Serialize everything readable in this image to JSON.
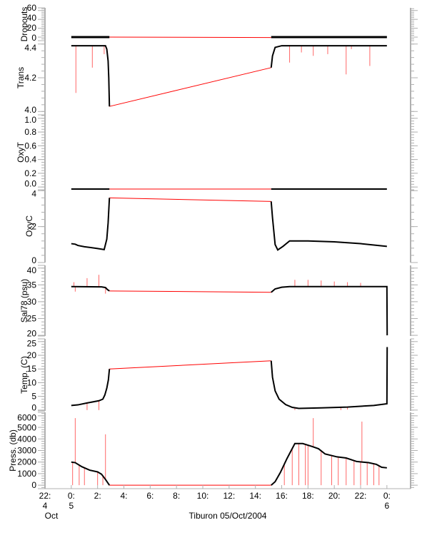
{
  "chart_data": {
    "type": "line",
    "xlabel": "Tiburon 05/Oct/2004",
    "xlim": [
      -2,
      25.8
    ],
    "x_units": "hours since 00:00 05/Oct/2004",
    "xticks": [
      {
        "v": -2,
        "label": "22:",
        "sub": "4",
        "sub2": "Oct"
      },
      {
        "v": 0,
        "label": "0:",
        "sub": "5"
      },
      {
        "v": 2,
        "label": "2:"
      },
      {
        "v": 4,
        "label": "4:"
      },
      {
        "v": 6,
        "label": "6:"
      },
      {
        "v": 8,
        "label": "8:"
      },
      {
        "v": 10,
        "label": "10:"
      },
      {
        "v": 12,
        "label": "12:"
      },
      {
        "v": 14,
        "label": "14:"
      },
      {
        "v": 16,
        "label": "16:"
      },
      {
        "v": 18,
        "label": "18:"
      },
      {
        "v": 20,
        "label": "20:"
      },
      {
        "v": 22,
        "label": "22:"
      },
      {
        "v": 24,
        "label": "0:",
        "sub": "6"
      }
    ],
    "colors": {
      "data": "#000000",
      "flagged": "#ff0000",
      "axis": "#b0b0b0"
    },
    "panels": [
      {
        "name": "dropouts",
        "ylabel": "Dropouts",
        "ylim": [
          -8,
          66
        ],
        "yticks": [
          {
            "v": 0,
            "label": "0"
          },
          {
            "v": 20,
            "label": "20"
          },
          {
            "v": 40,
            "label": "40"
          },
          {
            "v": 60,
            "label": "60"
          }
        ],
        "series": [
          [
            [
              0,
              0
            ],
            [
              2.9,
              0
            ]
          ],
          [
            [
              15.2,
              0
            ],
            [
              24,
              0
            ]
          ]
        ],
        "gap": [
          [
            2.9,
            0
          ],
          [
            15.2,
            -1
          ]
        ],
        "spikes": []
      },
      {
        "name": "trans",
        "ylabel": "Trans",
        "ylim": [
          3.98,
          4.42
        ],
        "yticks": [
          {
            "v": 4.0,
            "label": "4.0"
          },
          {
            "v": 4.2,
            "label": "4.2"
          },
          {
            "v": 4.4,
            "label": "4.4"
          }
        ],
        "series": [
          [
            [
              0,
              4.39
            ],
            [
              2.6,
              4.39
            ],
            [
              2.7,
              4.37
            ],
            [
              2.8,
              4.3
            ],
            [
              2.85,
              4.2
            ],
            [
              2.9,
              4.03
            ]
          ],
          [
            [
              15.2,
              4.26
            ],
            [
              15.3,
              4.33
            ],
            [
              15.5,
              4.38
            ],
            [
              16,
              4.39
            ],
            [
              24,
              4.39
            ]
          ]
        ],
        "gap": [
          [
            2.9,
            4.03
          ],
          [
            15.2,
            4.26
          ]
        ],
        "spikes": [
          [
            0.35,
            4.11
          ],
          [
            1.6,
            4.26
          ],
          [
            2.5,
            4.34
          ],
          [
            16.6,
            4.29
          ],
          [
            18.4,
            4.33
          ],
          [
            19.5,
            4.34
          ],
          [
            20.9,
            4.22
          ],
          [
            22.7,
            4.27
          ],
          [
            17.5,
            4.35
          ],
          [
            21.3,
            4.37
          ]
        ]
      },
      {
        "name": "oxyt",
        "ylabel": "OxyT",
        "ylim": [
          -0.04,
          1.05
        ],
        "yticks": [
          {
            "v": 0,
            "label": "0.0"
          },
          {
            "v": 0.2,
            "label": "0.2"
          },
          {
            "v": 0.4,
            "label": "0.4"
          },
          {
            "v": 0.6,
            "label": "0.6"
          },
          {
            "v": 0.8,
            "label": "0.8"
          },
          {
            "v": 1.0,
            "label": "1.0"
          }
        ],
        "series": [
          [
            [
              0,
              -0.03
            ],
            [
              2.9,
              -0.03
            ]
          ],
          [
            [
              15.2,
              -0.03
            ],
            [
              24,
              -0.03
            ]
          ]
        ],
        "gap": [
          [
            2.9,
            -0.03
          ],
          [
            15.2,
            -0.03
          ]
        ],
        "spikes": []
      },
      {
        "name": "oxyc",
        "ylabel": "OxyC",
        "ylim": [
          0,
          4.05
        ],
        "yticks": [
          {
            "v": 0,
            "label": "0"
          },
          {
            "v": 2,
            "label": "2"
          },
          {
            "v": 4,
            "label": "4"
          }
        ],
        "series": [
          [
            [
              0,
              1.05
            ],
            [
              0.3,
              1.02
            ],
            [
              0.5,
              0.95
            ],
            [
              1.0,
              0.88
            ],
            [
              2.0,
              0.78
            ],
            [
              2.5,
              0.72
            ],
            [
              2.7,
              1.3
            ],
            [
              2.8,
              2.2
            ],
            [
              2.9,
              3.6
            ]
          ],
          [
            [
              15.2,
              3.4
            ],
            [
              15.3,
              2.5
            ],
            [
              15.5,
              1.0
            ],
            [
              15.7,
              0.7
            ],
            [
              16.1,
              0.9
            ],
            [
              16.6,
              1.2
            ],
            [
              18,
              1.2
            ],
            [
              20,
              1.15
            ],
            [
              22,
              1.05
            ],
            [
              24,
              0.9
            ]
          ]
        ],
        "gap": [
          [
            2.9,
            3.6
          ],
          [
            15.2,
            3.4
          ]
        ],
        "spikes": []
      },
      {
        "name": "sal78",
        "ylabel": "Sal78 (psu)",
        "ylim": [
          19.8,
          40.8
        ],
        "yticks": [
          {
            "v": 20,
            "label": "20"
          },
          {
            "v": 25,
            "label": "25"
          },
          {
            "v": 30,
            "label": "30"
          },
          {
            "v": 35,
            "label": "35"
          },
          {
            "v": 40,
            "label": "40"
          }
        ],
        "series": [
          [
            [
              0,
              34.5
            ],
            [
              2.3,
              34.4
            ],
            [
              2.6,
              34.2
            ],
            [
              2.75,
              33.6
            ],
            [
              2.9,
              33.2
            ]
          ],
          [
            [
              15.2,
              32.8
            ],
            [
              15.5,
              33.8
            ],
            [
              16,
              34.3
            ],
            [
              16.6,
              34.5
            ],
            [
              24,
              34.5
            ],
            [
              24.02,
              20
            ]
          ]
        ],
        "gap": [
          [
            2.9,
            33.2
          ],
          [
            15.2,
            32.8
          ]
        ],
        "spikes": [
          [
            0.2,
            35.8
          ],
          [
            0.3,
            33
          ],
          [
            1.2,
            37
          ],
          [
            2.1,
            38
          ],
          [
            2.6,
            32.4
          ],
          [
            17,
            36.5
          ],
          [
            18,
            36.5
          ],
          [
            19,
            36.3
          ],
          [
            20,
            36
          ],
          [
            21,
            35.8
          ],
          [
            22,
            35.6
          ]
        ]
      },
      {
        "name": "temp",
        "ylabel": "Temp. (C)",
        "ylim": [
          -0.3,
          26
        ],
        "yticks": [
          {
            "v": 0,
            "label": "0"
          },
          {
            "v": 5,
            "label": "5"
          },
          {
            "v": 10,
            "label": "10"
          },
          {
            "v": 15,
            "label": "15"
          },
          {
            "v": 20,
            "label": "20"
          },
          {
            "v": 25,
            "label": "25"
          }
        ],
        "series": [
          [
            [
              0,
              1.7
            ],
            [
              0.5,
              1.9
            ],
            [
              1.2,
              2.6
            ],
            [
              2.1,
              3.4
            ],
            [
              2.4,
              4.0
            ],
            [
              2.55,
              5.5
            ],
            [
              2.7,
              8
            ],
            [
              2.82,
              11
            ],
            [
              2.9,
              15
            ]
          ],
          [
            [
              15.2,
              18
            ],
            [
              15.3,
              12
            ],
            [
              15.5,
              7
            ],
            [
              15.8,
              4
            ],
            [
              16.3,
              2
            ],
            [
              16.8,
              1
            ],
            [
              17.3,
              0.6
            ],
            [
              19,
              0.8
            ],
            [
              21,
              1.1
            ],
            [
              23,
              1.7
            ],
            [
              24,
              2.3
            ],
            [
              24.02,
              23
            ]
          ]
        ],
        "gap": [
          [
            2.9,
            15
          ],
          [
            15.2,
            18
          ]
        ],
        "spikes": [
          [
            1.2,
            0
          ],
          [
            2.1,
            0
          ],
          [
            17,
            0
          ],
          [
            20.5,
            0
          ],
          [
            21,
            0.2
          ]
        ]
      },
      {
        "name": "press",
        "ylabel": "Press. (db)",
        "ylim": [
          -300,
          6300
        ],
        "yticks": [
          {
            "v": 0,
            "label": "0"
          },
          {
            "v": 1000,
            "label": "1000"
          },
          {
            "v": 2000,
            "label": "2000"
          },
          {
            "v": 3000,
            "label": "3000"
          },
          {
            "v": 4000,
            "label": "4000"
          },
          {
            "v": 5000,
            "label": "5000"
          },
          {
            "v": 6000,
            "label": "6000"
          }
        ],
        "series": [
          [
            [
              0,
              2000
            ],
            [
              0.3,
              1950
            ],
            [
              0.8,
              1600
            ],
            [
              1.4,
              1300
            ],
            [
              2.0,
              1150
            ],
            [
              2.3,
              950
            ],
            [
              2.6,
              500
            ],
            [
              2.9,
              0
            ]
          ],
          [
            [
              15.2,
              0
            ],
            [
              15.5,
              300
            ],
            [
              15.9,
              1100
            ],
            [
              16.4,
              2300
            ],
            [
              17.0,
              3600
            ],
            [
              17.6,
              3600
            ],
            [
              18.3,
              3350
            ],
            [
              18.8,
              3150
            ],
            [
              19.3,
              2700
            ],
            [
              20.2,
              2450
            ],
            [
              20.9,
              2350
            ],
            [
              21.7,
              2050
            ],
            [
              22.6,
              1950
            ],
            [
              23.2,
              1800
            ],
            [
              23.6,
              1550
            ],
            [
              24,
              1500
            ]
          ]
        ],
        "gap": [
          [
            2.9,
            0
          ],
          [
            15.2,
            0
          ]
        ],
        "spikes": [
          [
            0.3,
            5800
          ],
          [
            2.6,
            4400
          ],
          [
            18.4,
            5800
          ],
          [
            22.1,
            5500
          ],
          [
            0.1,
            0
          ],
          [
            0.6,
            0
          ],
          [
            1.0,
            0
          ],
          [
            2.0,
            0
          ],
          [
            2.4,
            0
          ],
          [
            16.2,
            0
          ],
          [
            16.8,
            0
          ],
          [
            17.3,
            0
          ],
          [
            17.8,
            0
          ],
          [
            18.0,
            0
          ],
          [
            19.0,
            0
          ],
          [
            19.8,
            0
          ],
          [
            20.3,
            0
          ],
          [
            20.9,
            0
          ],
          [
            21.5,
            0
          ],
          [
            22.0,
            0
          ],
          [
            22.5,
            0
          ],
          [
            23.0,
            0
          ],
          [
            23.4,
            0
          ]
        ]
      }
    ]
  }
}
